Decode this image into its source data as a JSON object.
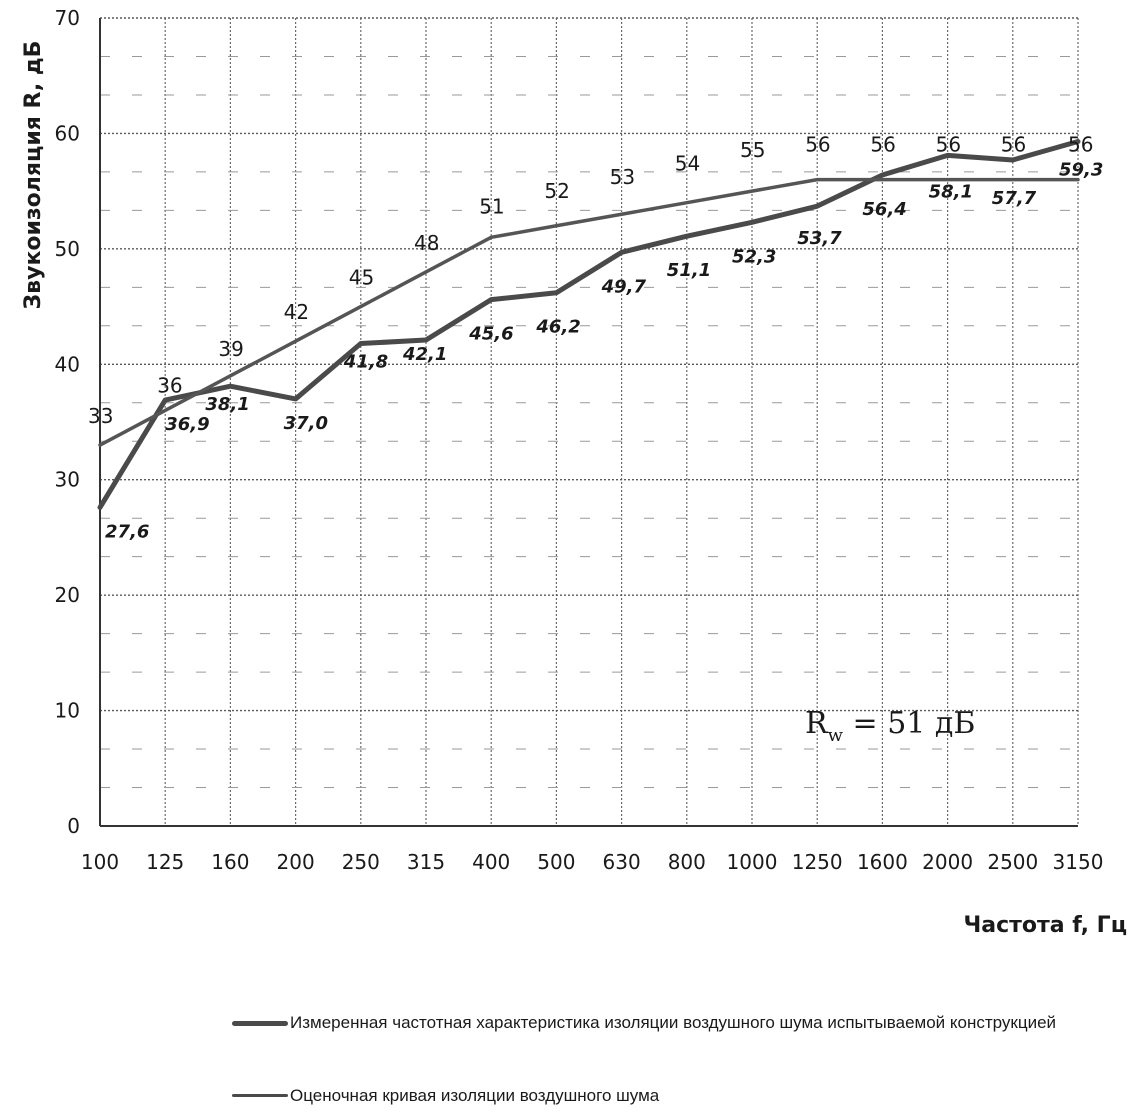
{
  "chart_data": {
    "type": "line",
    "title": "",
    "xlabel": "Частота f, Гц",
    "ylabel": "Звукоизоляция R, дБ",
    "categories": [
      "100",
      "125",
      "160",
      "200",
      "250",
      "315",
      "400",
      "500",
      "630",
      "800",
      "1000",
      "1250",
      "1600",
      "2000",
      "2500",
      "3150"
    ],
    "ylim": [
      0,
      70
    ],
    "yticks": [
      "0",
      "10",
      "20",
      "30",
      "40",
      "50",
      "60",
      "70"
    ],
    "grid": true,
    "legend_position": "bottom",
    "series": [
      {
        "name": "Измеренная частотная характеристика изоляции воздушного шума испытываемой конструкцией",
        "values": [
          27.6,
          36.9,
          38.1,
          37.0,
          41.8,
          42.1,
          45.6,
          46.2,
          49.7,
          51.1,
          52.3,
          53.7,
          56.4,
          58.1,
          57.7,
          59.3
        ],
        "labels": [
          "27,6",
          "36,9",
          "38,1",
          "37,0",
          "41,8",
          "42,1",
          "45,6",
          "46,2",
          "49,7",
          "51,1",
          "52,3",
          "53,7",
          "56,4",
          "58,1",
          "57,7",
          "59,3"
        ],
        "color": "#4a4a4a"
      },
      {
        "name": "Оценочная кривая изоляции воздушного шума",
        "values": [
          33,
          36,
          39,
          42,
          45,
          48,
          51,
          52,
          53,
          54,
          55,
          56,
          56,
          56,
          56,
          56
        ],
        "labels": [
          "33",
          "36",
          "39",
          "42",
          "45",
          "48",
          "51",
          "52",
          "53",
          "54",
          "55",
          "56",
          "56",
          "56",
          "56",
          "56"
        ],
        "color": "#555555"
      }
    ],
    "annotation": {
      "prefix": "R",
      "subscript": "w",
      "value": " = 51 дБ"
    }
  }
}
